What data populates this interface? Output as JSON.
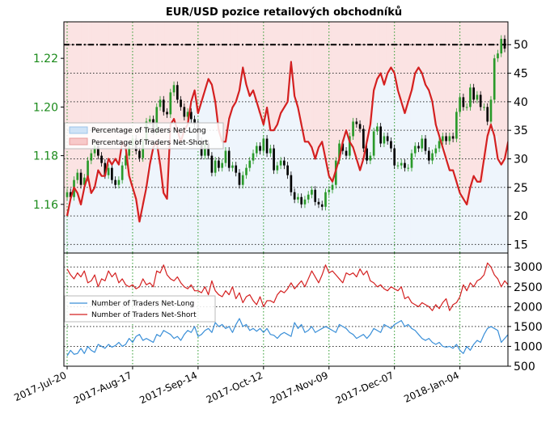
{
  "chart_data": [
    {
      "type": "line",
      "title": "EUR/USD pozice retailových obchodníků",
      "left_axis": {
        "ylim": [
          1.14,
          1.235
        ],
        "ticks": [
          "1.16",
          "1.18",
          "1.20",
          "1.22"
        ]
      },
      "right_axis": {
        "ylim": [
          13.5,
          54
        ],
        "ticks": [
          "15",
          "20",
          "25",
          "30",
          "35",
          "40",
          "45",
          "50"
        ],
        "reference_line": 50
      },
      "x_tick_labels": [
        "2017-Jul-20",
        "2017-Aug-17",
        "2017-Sep-14",
        "2017-Oct-12",
        "2017-Nov-09",
        "2017-Dec-07",
        "2018-Jan-04"
      ],
      "legend": {
        "placement": "center-left",
        "entries": [
          "Percentage of Traders Net-Long",
          "Percentage of Traders Net-Short"
        ]
      },
      "grid": true,
      "candlesticks": {
        "series": "EUR/USD",
        "close": [
          1.165,
          1.163,
          1.17,
          1.173,
          1.168,
          1.171,
          1.178,
          1.181,
          1.184,
          1.18,
          1.177,
          1.172,
          1.175,
          1.17,
          1.168,
          1.17,
          1.176,
          1.18,
          1.184,
          1.187,
          1.182,
          1.179,
          1.186,
          1.194,
          1.195,
          1.19,
          1.2,
          1.203,
          1.198,
          1.197,
          1.206,
          1.209,
          1.203,
          1.2,
          1.196,
          1.198,
          1.195,
          1.193,
          1.186,
          1.18,
          1.185,
          1.18,
          1.173,
          1.178,
          1.175,
          1.177,
          1.182,
          1.175,
          1.176,
          1.173,
          1.168,
          1.172,
          1.175,
          1.178,
          1.181,
          1.184,
          1.182,
          1.187,
          1.181,
          1.183,
          1.174,
          1.176,
          1.178,
          1.176,
          1.172,
          1.165,
          1.162,
          1.163,
          1.16,
          1.162,
          1.164,
          1.166,
          1.161,
          1.16,
          1.159,
          1.165,
          1.166,
          1.168,
          1.178,
          1.185,
          1.182,
          1.18,
          1.188,
          1.194,
          1.193,
          1.191,
          1.183,
          1.178,
          1.18,
          1.19,
          1.192,
          1.185,
          1.188,
          1.186,
          1.183,
          1.176,
          1.176,
          1.177,
          1.175,
          1.175,
          1.181,
          1.184,
          1.183,
          1.187,
          1.182,
          1.178,
          1.181,
          1.183,
          1.186,
          1.188,
          1.186,
          1.188,
          1.187,
          1.198,
          1.204,
          1.2,
          1.2,
          1.208,
          1.203,
          1.205,
          1.2,
          1.2,
          1.194,
          1.203,
          1.22,
          1.222,
          1.228,
          1.224
        ]
      },
      "series": [
        {
          "name": "Percentage of Traders Net-Short",
          "color": "#d42020",
          "values": [
            20,
            23,
            25,
            24,
            22,
            25,
            27,
            24,
            25,
            28,
            27,
            27,
            30,
            29,
            30,
            29,
            33,
            32,
            27,
            25,
            23,
            19,
            22,
            25,
            29,
            32,
            33,
            29,
            24,
            23,
            36,
            37,
            35,
            33,
            35,
            36,
            40,
            42,
            38,
            40,
            42,
            44,
            43,
            40,
            35,
            33,
            33,
            37,
            39,
            40,
            42,
            46,
            43,
            41,
            42,
            40,
            38,
            36,
            39,
            35,
            35,
            36,
            38,
            39,
            40,
            47,
            41,
            39,
            36,
            33,
            33,
            32,
            30,
            32,
            33,
            30,
            27,
            26,
            28,
            30,
            33,
            35,
            33,
            32,
            30,
            28,
            30,
            33,
            36,
            42,
            44,
            45,
            43,
            45,
            46,
            45,
            42,
            40,
            38,
            40,
            42,
            45,
            46,
            45,
            43,
            42,
            40,
            36,
            34,
            32,
            30,
            28,
            28,
            26,
            24,
            23,
            22,
            25,
            27,
            26,
            26,
            30,
            34,
            36,
            34,
            30,
            29,
            30,
            33,
            31
          ]
        }
      ]
    },
    {
      "type": "line",
      "legend": {
        "placement": "left",
        "entries": [
          "Number of Traders Net-Long",
          "Number of Traders Net-Short"
        ]
      },
      "ylim": [
        500,
        3350
      ],
      "ticks": [
        "500",
        "1000",
        "1500",
        "2000",
        "2500",
        "3000"
      ],
      "grid": true,
      "series": [
        {
          "name": "Number of Traders Net-Long",
          "color": "#3a8fd8",
          "values": [
            760,
            900,
            800,
            820,
            950,
            820,
            1000,
            900,
            850,
            1050,
            1000,
            950,
            1050,
            980,
            1020,
            1100,
            1000,
            1050,
            1200,
            1100,
            1250,
            1300,
            1150,
            1200,
            1150,
            1100,
            1300,
            1250,
            1400,
            1350,
            1300,
            1200,
            1250,
            1150,
            1300,
            1400,
            1350,
            1500,
            1250,
            1300,
            1400,
            1450,
            1350,
            1600,
            1500,
            1550,
            1450,
            1500,
            1350,
            1550,
            1700,
            1500,
            1550,
            1400,
            1450,
            1380,
            1450,
            1350,
            1450,
            1300,
            1280,
            1200,
            1300,
            1350,
            1300,
            1250,
            1600,
            1450,
            1550,
            1350,
            1400,
            1500,
            1350,
            1400,
            1450,
            1500,
            1450,
            1400,
            1350,
            1550,
            1500,
            1450,
            1350,
            1300,
            1200,
            1250,
            1300,
            1200,
            1300,
            1450,
            1400,
            1350,
            1550,
            1500,
            1450,
            1550,
            1600,
            1650,
            1500,
            1550,
            1450,
            1400,
            1300,
            1200,
            1150,
            1200,
            1100,
            1050,
            1100,
            1000,
            980,
            1000,
            950,
            1050,
            900,
            820,
            1000,
            900,
            1050,
            1150,
            1100,
            1300,
            1450,
            1500,
            1450,
            1400,
            1100,
            1200,
            1300,
            1150
          ]
        },
        {
          "name": "Number of Traders Net-Short",
          "color": "#d42020",
          "values": [
            2950,
            2800,
            2700,
            2850,
            2750,
            2900,
            2600,
            2650,
            2800,
            2500,
            2700,
            2650,
            2900,
            2750,
            2850,
            2600,
            2700,
            2550,
            2500,
            2550,
            2450,
            2500,
            2700,
            2550,
            2600,
            2500,
            2900,
            2850,
            3050,
            2800,
            2700,
            2650,
            2750,
            2600,
            2500,
            2450,
            2550,
            2400,
            2400,
            2350,
            2500,
            2300,
            2650,
            2400,
            2300,
            2250,
            2400,
            2300,
            2500,
            2200,
            2350,
            2100,
            2250,
            2300,
            2150,
            2050,
            2250,
            2000,
            2150,
            2150,
            2100,
            2300,
            2400,
            2350,
            2450,
            2600,
            2450,
            2550,
            2650,
            2500,
            2700,
            2900,
            2750,
            2600,
            2800,
            3050,
            2850,
            2900,
            2800,
            2700,
            2600,
            2850,
            2800,
            2850,
            2750,
            2950,
            2800,
            2900,
            2650,
            2600,
            2500,
            2550,
            2450,
            2400,
            2500,
            2450,
            2400,
            2500,
            2200,
            2250,
            2100,
            2050,
            2000,
            2100,
            2050,
            2000,
            1900,
            2050,
            1950,
            2100,
            2200,
            1900,
            2050,
            2100,
            2250,
            2550,
            2400,
            2600,
            2500,
            2650,
            2700,
            2800,
            3100,
            3000,
            2800,
            2700,
            2500,
            2650,
            2550,
            2700
          ]
        }
      ]
    }
  ]
}
